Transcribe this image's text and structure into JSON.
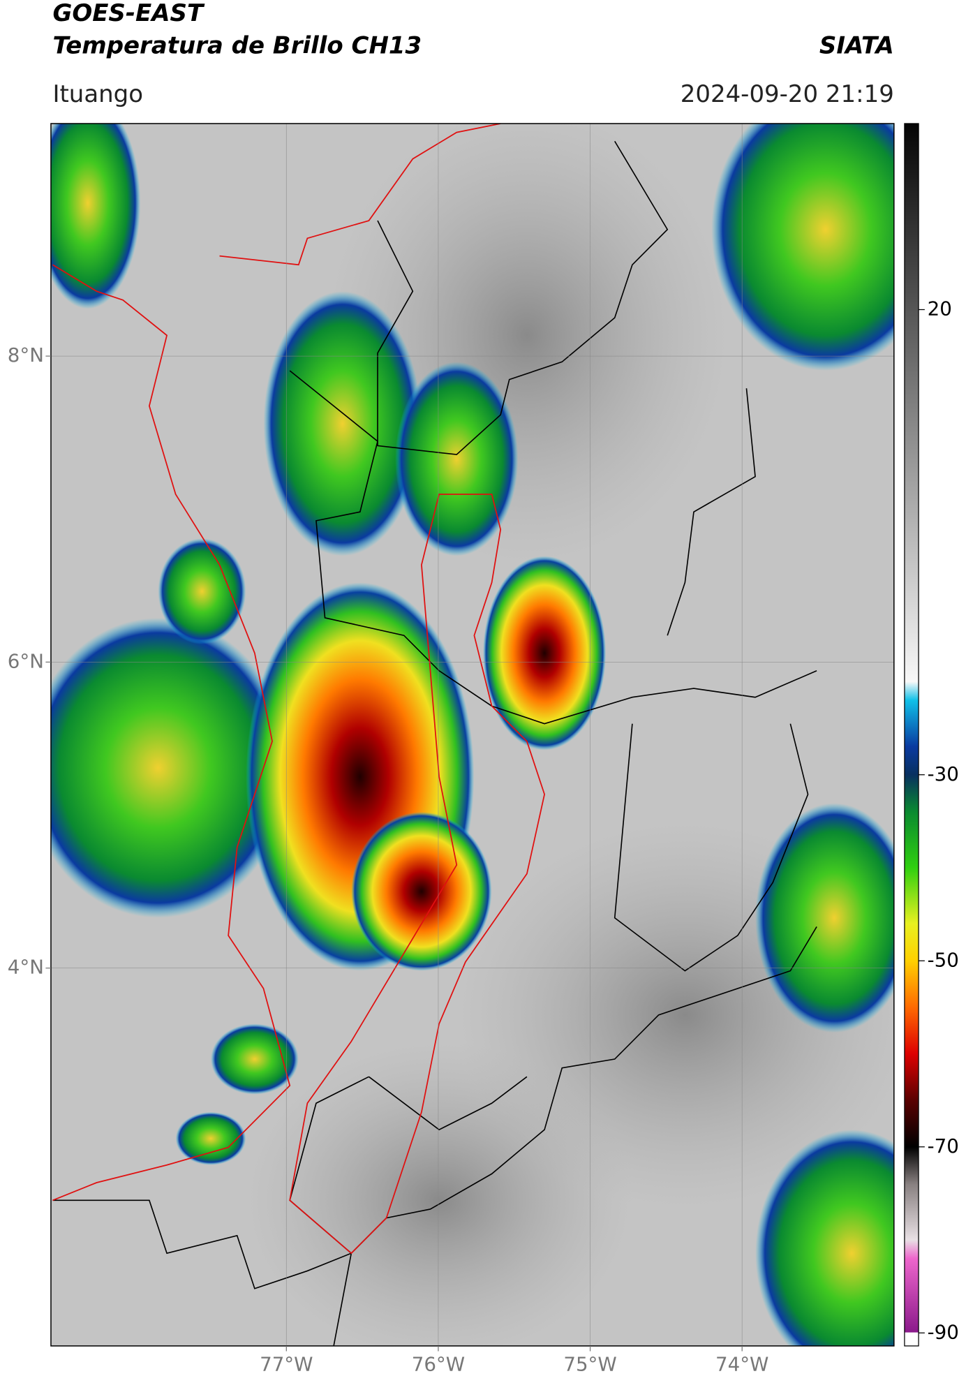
{
  "header": {
    "title": "GOES-EAST",
    "subtitle": "Temperatura de Brillo CH13",
    "org": "SIATA",
    "location": "Ituango",
    "datetime": "2024-09-20 21:19"
  },
  "map": {
    "xlim": [
      -78.55,
      -73.0
    ],
    "ylim": [
      1.53,
      9.52
    ],
    "xticks": [
      {
        "value": -77,
        "label": "77°W"
      },
      {
        "value": -76,
        "label": "76°W"
      },
      {
        "value": -75,
        "label": "75°W"
      },
      {
        "value": -74,
        "label": "74°W"
      }
    ],
    "yticks": [
      {
        "value": 4,
        "label": "4°N"
      },
      {
        "value": 6,
        "label": "6°N"
      },
      {
        "value": 8,
        "label": "8°N"
      }
    ],
    "grid": true
  },
  "colorbar": {
    "lim": [
      -91.4,
      40
    ],
    "ticks": [
      -90,
      -70,
      -50,
      -30,
      20
    ],
    "stops": [
      {
        "value": -91.4,
        "color": "#ffffff"
      },
      {
        "value": -90,
        "color": "#ffffff"
      },
      {
        "value": -89.9,
        "color": "#8b1a8b"
      },
      {
        "value": -82,
        "color": "#ee66cc"
      },
      {
        "value": -80,
        "color": "#e8e0e4"
      },
      {
        "value": -74,
        "color": "#888080"
      },
      {
        "value": -70,
        "color": "#000000"
      },
      {
        "value": -65,
        "color": "#5a0000"
      },
      {
        "value": -60,
        "color": "#dd0000"
      },
      {
        "value": -55,
        "color": "#ff6a00"
      },
      {
        "value": -50,
        "color": "#ffd000"
      },
      {
        "value": -46,
        "color": "#e8f020"
      },
      {
        "value": -40,
        "color": "#30d010"
      },
      {
        "value": -34,
        "color": "#0a8a30"
      },
      {
        "value": -30,
        "color": "#083060"
      },
      {
        "value": -27,
        "color": "#0a3aa0"
      },
      {
        "value": -22,
        "color": "#10c0e8"
      },
      {
        "value": -20,
        "color": "#f8f8f8"
      },
      {
        "value": 40,
        "color": "#050505"
      }
    ]
  }
}
